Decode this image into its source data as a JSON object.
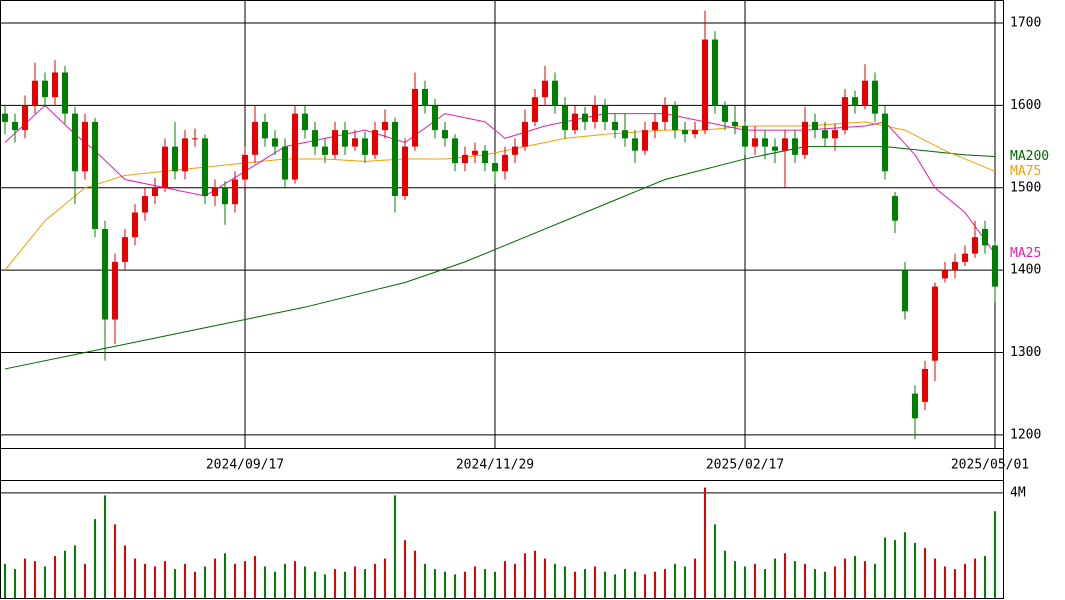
{
  "chart_data": [
    {
      "type": "candlestick",
      "open": [
        1590,
        1580,
        1570,
        1600,
        1630,
        1610,
        1640,
        1590,
        1520,
        1580,
        1450,
        1340,
        1410,
        1440,
        1470,
        1490,
        1500,
        1550,
        1520,
        1560,
        1560,
        1490,
        1500,
        1480,
        1510,
        1540,
        1580,
        1560,
        1550,
        1510,
        1590,
        1570,
        1550,
        1540,
        1570,
        1550,
        1560,
        1540,
        1570,
        1580,
        1490,
        1550,
        1620,
        1600,
        1570,
        1560,
        1530,
        1540,
        1545,
        1530,
        1520,
        1540,
        1550,
        1580,
        1610,
        1630,
        1600,
        1570,
        1590,
        1580,
        1600,
        1580,
        1570,
        1560,
        1545,
        1570,
        1580,
        1600,
        1570,
        1565,
        1570,
        1680,
        1600,
        1580,
        1575,
        1550,
        1560,
        1550,
        1545,
        1560,
        1540,
        1580,
        1570,
        1560,
        1570,
        1610,
        1600,
        1630,
        1590,
        1490,
        1400,
        1250,
        1240,
        1290,
        1390,
        1400,
        1410,
        1420,
        1450,
        1430
      ],
      "high": [
        1600,
        1590,
        1612,
        1652,
        1640,
        1655,
        1648,
        1598,
        1590,
        1585,
        1460,
        1420,
        1450,
        1480,
        1500,
        1512,
        1560,
        1580,
        1570,
        1572,
        1565,
        1510,
        1508,
        1520,
        1550,
        1600,
        1590,
        1570,
        1560,
        1600,
        1600,
        1580,
        1560,
        1580,
        1580,
        1570,
        1568,
        1580,
        1595,
        1585,
        1560,
        1640,
        1630,
        1608,
        1580,
        1565,
        1550,
        1555,
        1552,
        1540,
        1550,
        1560,
        1595,
        1620,
        1648,
        1640,
        1610,
        1600,
        1598,
        1612,
        1608,
        1590,
        1590,
        1570,
        1580,
        1590,
        1610,
        1605,
        1580,
        1580,
        1715,
        1690,
        1605,
        1600,
        1580,
        1575,
        1570,
        1560,
        1570,
        1570,
        1598,
        1590,
        1580,
        1578,
        1620,
        1618,
        1650,
        1640,
        1600,
        1495,
        1410,
        1260,
        1290,
        1385,
        1410,
        1420,
        1430,
        1460,
        1460,
        1435
      ],
      "low": [
        1565,
        1555,
        1560,
        1590,
        1598,
        1600,
        1578,
        1480,
        1510,
        1440,
        1290,
        1310,
        1400,
        1430,
        1460,
        1480,
        1495,
        1510,
        1510,
        1550,
        1480,
        1478,
        1455,
        1470,
        1500,
        1530,
        1550,
        1540,
        1500,
        1505,
        1560,
        1540,
        1530,
        1535,
        1540,
        1545,
        1530,
        1535,
        1560,
        1470,
        1485,
        1545,
        1590,
        1560,
        1550,
        1520,
        1520,
        1530,
        1520,
        1505,
        1510,
        1530,
        1545,
        1575,
        1600,
        1590,
        1560,
        1565,
        1570,
        1572,
        1570,
        1560,
        1550,
        1530,
        1540,
        1560,
        1570,
        1560,
        1555,
        1560,
        1565,
        1590,
        1570,
        1565,
        1540,
        1540,
        1535,
        1530,
        1500,
        1530,
        1535,
        1560,
        1550,
        1545,
        1565,
        1590,
        1595,
        1580,
        1510,
        1445,
        1340,
        1195,
        1230,
        1265,
        1385,
        1390,
        1405,
        1415,
        1420,
        1360
      ],
      "close": [
        1580,
        1570,
        1600,
        1630,
        1610,
        1640,
        1590,
        1520,
        1580,
        1450,
        1340,
        1410,
        1440,
        1470,
        1490,
        1500,
        1550,
        1520,
        1560,
        1560,
        1490,
        1500,
        1480,
        1510,
        1540,
        1580,
        1560,
        1550,
        1510,
        1590,
        1570,
        1550,
        1540,
        1570,
        1550,
        1560,
        1540,
        1570,
        1580,
        1490,
        1550,
        1620,
        1600,
        1570,
        1560,
        1530,
        1540,
        1545,
        1530,
        1520,
        1540,
        1550,
        1580,
        1610,
        1630,
        1600,
        1570,
        1590,
        1580,
        1600,
        1580,
        1570,
        1560,
        1545,
        1570,
        1580,
        1600,
        1570,
        1565,
        1570,
        1680,
        1600,
        1580,
        1575,
        1550,
        1560,
        1550,
        1545,
        1560,
        1540,
        1580,
        1570,
        1560,
        1570,
        1610,
        1600,
        1630,
        1590,
        1520,
        1460,
        1350,
        1220,
        1280,
        1380,
        1400,
        1410,
        1420,
        1440,
        1430,
        1380
      ],
      "up_color": "#e60000",
      "down_color": "#008000",
      "xlim": [
        -0.5,
        99.5
      ],
      "xticks": [
        {
          "value": 24,
          "label": "2024/09/17"
        },
        {
          "value": 49,
          "label": "2024/11/29"
        },
        {
          "value": 74,
          "label": "2025/02/17"
        },
        {
          "value": 99,
          "label": "2025/05/01"
        }
      ],
      "ylim": [
        1184,
        1728
      ],
      "yticks": [
        1200,
        1300,
        1400,
        1500,
        1600,
        1700
      ],
      "grid": true,
      "series": [
        {
          "name": "MA200",
          "color": "#006600",
          "x": [
            0,
            10,
            20,
            30,
            40,
            46,
            52,
            60,
            66,
            74,
            80,
            88,
            92,
            96,
            99
          ],
          "values": [
            1280,
            1305,
            1330,
            1355,
            1385,
            1410,
            1440,
            1480,
            1510,
            1535,
            1550,
            1550,
            1545,
            1540,
            1538
          ]
        },
        {
          "name": "MA75",
          "color": "#f0a000",
          "x": [
            0,
            4,
            8,
            12,
            16,
            20,
            24,
            28,
            32,
            36,
            40,
            44,
            48,
            52,
            56,
            60,
            66,
            70,
            74,
            80,
            86,
            90,
            94,
            99
          ],
          "values": [
            1400,
            1460,
            1500,
            1515,
            1520,
            1525,
            1530,
            1535,
            1535,
            1532,
            1535,
            1535,
            1540,
            1550,
            1560,
            1565,
            1570,
            1570,
            1575,
            1575,
            1580,
            1570,
            1545,
            1520
          ]
        },
        {
          "name": "MA25",
          "color": "#e020b0",
          "x": [
            0,
            4,
            7,
            9,
            12,
            16,
            20,
            24,
            28,
            32,
            36,
            40,
            44,
            48,
            50,
            54,
            60,
            66,
            70,
            74,
            80,
            86,
            88,
            91,
            93,
            96,
            99
          ],
          "values": [
            1555,
            1600,
            1565,
            1545,
            1510,
            1500,
            1490,
            1520,
            1550,
            1560,
            1570,
            1555,
            1590,
            1580,
            1560,
            1575,
            1590,
            1590,
            1580,
            1570,
            1570,
            1575,
            1580,
            1540,
            1500,
            1470,
            1420
          ]
        }
      ]
    },
    {
      "type": "bar",
      "values": [
        1300000,
        1100000,
        1500000,
        1400000,
        1200000,
        1600000,
        1800000,
        2000000,
        1300000,
        3000000,
        3900000,
        2800000,
        2000000,
        1500000,
        1300000,
        1200000,
        1400000,
        1100000,
        1300000,
        1000000,
        1200000,
        1500000,
        1700000,
        1300000,
        1400000,
        1600000,
        1200000,
        1000000,
        1300000,
        1400000,
        1200000,
        1000000,
        900000,
        1100000,
        1000000,
        1200000,
        1100000,
        1300000,
        1500000,
        3900000,
        2200000,
        1800000,
        1300000,
        1100000,
        1000000,
        900000,
        1000000,
        1200000,
        1100000,
        1000000,
        1400000,
        1300000,
        1700000,
        1800000,
        1500000,
        1300000,
        1200000,
        1000000,
        1100000,
        1200000,
        1000000,
        900000,
        1100000,
        1000000,
        900000,
        1000000,
        1100000,
        1300000,
        1200000,
        1500000,
        4200000,
        2800000,
        1800000,
        1400000,
        1200000,
        1300000,
        1100000,
        1500000,
        1700000,
        1400000,
        1300000,
        1100000,
        1000000,
        1200000,
        1500000,
        1600000,
        1400000,
        1300000,
        2300000,
        2200000,
        2500000,
        2100000,
        1900000,
        1500000,
        1200000,
        1100000,
        1300000,
        1500000,
        1600000,
        3300000
      ],
      "xlim": [
        -0.5,
        99.5
      ],
      "ylim": [
        0,
        4450000
      ],
      "yticks": [
        {
          "value": 4000000,
          "label": "4M"
        }
      ]
    }
  ]
}
